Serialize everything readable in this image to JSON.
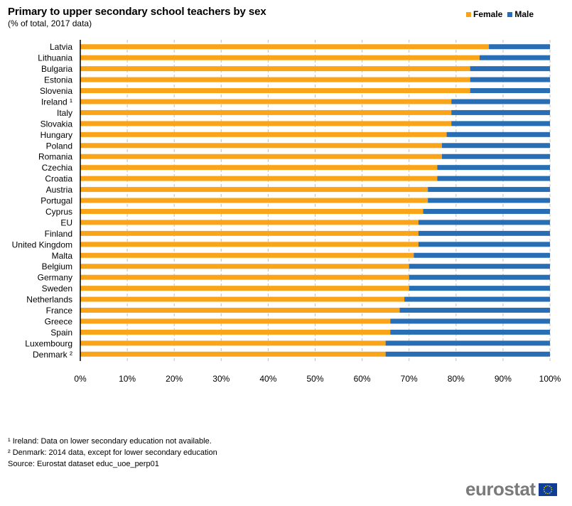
{
  "chart_data": {
    "type": "bar",
    "orientation": "horizontal",
    "stacked": true,
    "title": "Primary to upper secondary school teachers by sex",
    "subtitle": "(% of total, 2017 data)",
    "xlabel": "",
    "ylabel": "",
    "xlim": [
      0,
      100
    ],
    "x_ticks": [
      "0%",
      "10%",
      "20%",
      "30%",
      "40%",
      "50%",
      "60%",
      "70%",
      "80%",
      "90%",
      "100%"
    ],
    "grid": true,
    "legend_position": "top-right",
    "categories": [
      "Latvia",
      "Lithuania",
      "Bulgaria",
      "Estonia",
      "Slovenia",
      "Ireland ¹",
      "Italy",
      "Slovakia",
      "Hungary",
      "Poland",
      "Romania",
      "Czechia",
      "Croatia",
      "Austria",
      "Portugal",
      "Cyprus",
      "EU",
      "Finland",
      "United Kingdom",
      "Malta",
      "Belgium",
      "Germany",
      "Sweden",
      "Netherlands",
      "France",
      "Greece",
      "Spain",
      "Luxembourg",
      "Denmark ²"
    ],
    "series": [
      {
        "name": "Female",
        "color": "#faa519",
        "values": [
          87,
          85,
          83,
          83,
          83,
          79,
          79,
          79,
          78,
          77,
          77,
          76,
          76,
          74,
          74,
          73,
          72,
          72,
          72,
          71,
          70,
          70,
          70,
          69,
          68,
          66,
          66,
          65,
          65
        ]
      },
      {
        "name": "Male",
        "color": "#286eb4",
        "values": [
          13,
          15,
          17,
          17,
          17,
          21,
          21,
          21,
          22,
          23,
          23,
          24,
          24,
          26,
          26,
          27,
          28,
          28,
          28,
          29,
          30,
          30,
          30,
          31,
          32,
          34,
          34,
          35,
          35
        ]
      }
    ]
  },
  "footnotes": [
    "¹ Ireland: Data on lower secondary education not available.",
    "² Denmark: 2014 data, except for lower secondary education",
    "Source: Eurostat dataset educ_uoe_perp01"
  ],
  "logo": {
    "text": "eurostat",
    "icon": "eu-flag-icon"
  }
}
